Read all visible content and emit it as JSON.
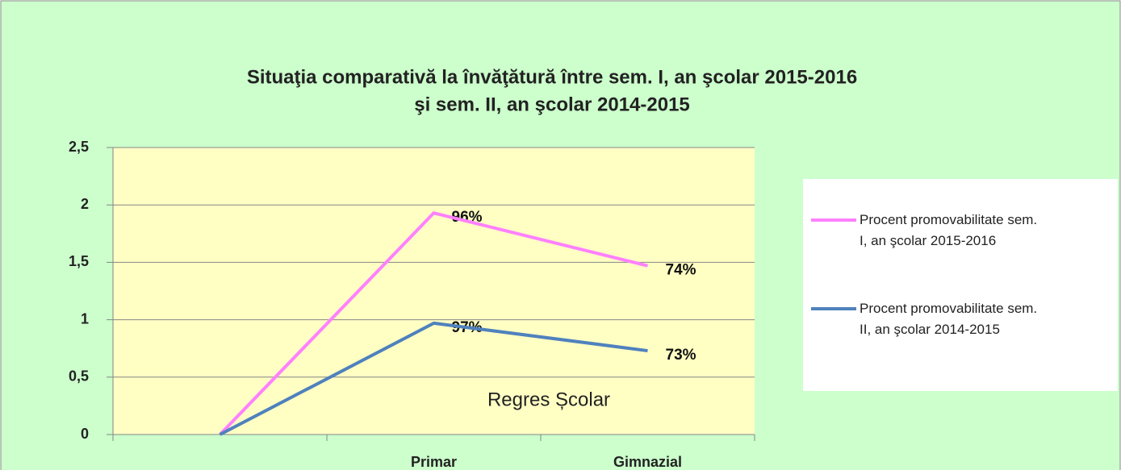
{
  "chart_data": {
    "type": "line",
    "stacked": true,
    "title": [
      "Situaţia comparativă la învăţătură între sem. I, an şcolar 2015-2016",
      "şi sem. II, an şcolar 2014-2015"
    ],
    "categories": [
      null,
      "Primar",
      "Gimnazial"
    ],
    "series": [
      {
        "name": "Procent promovabilitate sem. I, an şcolar 2015-2016",
        "color": "#ff80ff",
        "values": [
          0,
          0.96,
          0.74
        ],
        "value_labels": [
          null,
          "96%",
          "74%"
        ]
      },
      {
        "name": "Procent promovabilitate sem. II, an şcolar 2014-2015",
        "color": "#4f81bd",
        "values": [
          0,
          0.97,
          0.73
        ],
        "value_labels": [
          null,
          "97%",
          "73%"
        ]
      }
    ],
    "ylim": [
      0,
      2.5
    ],
    "yticks": [
      0,
      {
        "value": 0.5,
        "label": "0,5"
      },
      1,
      {
        "value": 1.5,
        "label": "1,5"
      },
      2,
      {
        "value": 2.5,
        "label": "2,5"
      }
    ],
    "grid": true,
    "legend": "right",
    "annotations": [
      "Regres Școlar"
    ]
  }
}
